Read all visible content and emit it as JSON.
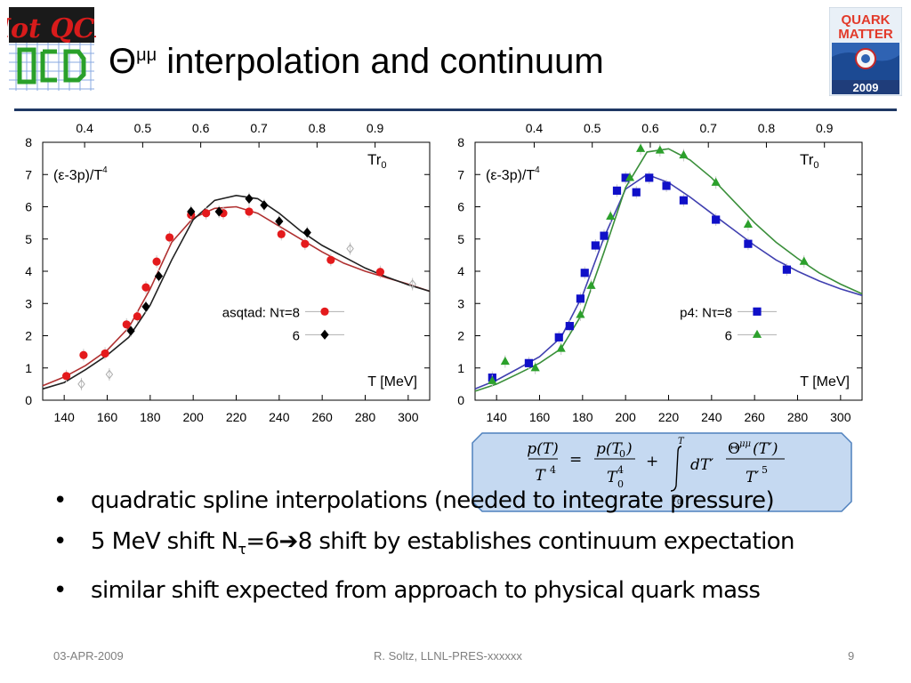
{
  "slide": {
    "title": "interpolation and continuum",
    "title_symbol": "Θ",
    "title_superscript": "μμ",
    "bullets": [
      {
        "text": "quadratic spline interpolations (needed to integrate pressure)"
      },
      {
        "pre": "5 MeV shift N",
        "sub": "τ",
        "mid": "=6",
        "arrow": "➔",
        "post": "8 shift by establishes continuum expectation"
      },
      {
        "text": "similar shift expected from approach to physical quark mass"
      }
    ],
    "footer": {
      "date": "03-APR-2009",
      "author": "R. Soltz,  LLNL-PRES-xxxxxx",
      "page": "9"
    },
    "logos": {
      "left": {
        "text": "Hot QCD",
        "name": "hotqcd-logo"
      },
      "right": {
        "line1": "QUARK",
        "line2": "MATTER",
        "year": "2009",
        "name": "quark-matter-2009-logo"
      }
    },
    "formula": {
      "lhs_num": "p(T)",
      "lhs_den": "T",
      "lhs_den_exp": "4",
      "eq": "=",
      "t1_num": "p(T",
      "t1_num_sub": "0",
      "t1_num_close": ")",
      "t1_den": "T",
      "t1_den_sub": "0",
      "t1_den_exp": "4",
      "plus": "+",
      "int_upper": "T",
      "int_lower": "T",
      "int_lower_sub": "0",
      "dT": "dT′",
      "t2_num": "Θ",
      "t2_num_sup": "μμ",
      "t2_num_arg": "(T′)",
      "t2_den": "T′",
      "t2_den_exp": "5"
    },
    "colors": {
      "title_rule": "#1f3864",
      "formula_fill": "#c5d9f1",
      "formula_stroke": "#4f81bd",
      "asqtad_8": "#e41a1c",
      "asqtad_6": "#000000",
      "curve_red": "#b03030",
      "curve_black": "#222222",
      "p4_8": "#1010c8",
      "p4_6": "#2ca02c",
      "curve_blue": "#4040b0",
      "curve_green": "#3a8f3a",
      "open_points": "#aaaaaa"
    }
  },
  "chart_data": [
    {
      "type": "scatter",
      "xlabel": "T [MeV]",
      "ylabel": "(ε-3p)/T4",
      "corner_label": "Tr0",
      "xlim": [
        130,
        310
      ],
      "ylim": [
        0,
        8
      ],
      "xticks": [
        140,
        160,
        180,
        200,
        220,
        240,
        260,
        280,
        300
      ],
      "yticks": [
        0,
        1,
        2,
        3,
        4,
        5,
        6,
        7,
        8
      ],
      "top_axis_ticks": [
        {
          "label": "0.4",
          "x": 149.5
        },
        {
          "label": "0.5",
          "x": 176.5
        },
        {
          "label": "0.6",
          "x": 203.5
        },
        {
          "label": "0.7",
          "x": 230.6
        },
        {
          "label": "0.8",
          "x": 257.6
        },
        {
          "label": "0.9",
          "x": 284.6
        }
      ],
      "legend_placement": "lower-right",
      "series": [
        {
          "name": "asqtad: Nτ=8",
          "legend_label": "asqtad: Nτ=8",
          "marker": "circle",
          "color_key": "asqtad_8",
          "points": [
            [
              141,
              0.75
            ],
            [
              149,
              1.4
            ],
            [
              159,
              1.45
            ],
            [
              169,
              2.35
            ],
            [
              174,
              2.6
            ],
            [
              178,
              3.5
            ],
            [
              183,
              4.3
            ],
            [
              189,
              5.05
            ],
            [
              199,
              5.75
            ],
            [
              206,
              5.8
            ],
            [
              214,
              5.8
            ],
            [
              226,
              5.85
            ],
            [
              241,
              5.15
            ],
            [
              252,
              4.85
            ],
            [
              264,
              4.35
            ],
            [
              287,
              3.98
            ]
          ]
        },
        {
          "name": "6",
          "legend_label": "6",
          "marker": "diamond",
          "color_key": "asqtad_6",
          "points": [
            [
              171,
              2.15
            ],
            [
              178,
              2.9
            ],
            [
              184,
              3.85
            ],
            [
              199,
              5.85
            ],
            [
              212,
              5.85
            ],
            [
              226,
              6.25
            ],
            [
              233,
              6.05
            ],
            [
              240,
              5.55
            ],
            [
              253,
              5.2
            ]
          ]
        },
        {
          "name": "6 (open)",
          "legend_label": "",
          "marker": "open-diamond",
          "color_key": "open_points",
          "points": [
            [
              148,
              0.5
            ],
            [
              161,
              0.8
            ],
            [
              273,
              4.7
            ],
            [
              302,
              3.6
            ]
          ]
        }
      ],
      "curves": [
        {
          "color_key": "curve_red",
          "points": [
            [
              130,
              0.45
            ],
            [
              140,
              0.72
            ],
            [
              150,
              1.08
            ],
            [
              160,
              1.55
            ],
            [
              170,
              2.25
            ],
            [
              180,
              3.45
            ],
            [
              190,
              4.9
            ],
            [
              200,
              5.65
            ],
            [
              210,
              5.95
            ],
            [
              220,
              6.0
            ],
            [
              230,
              5.8
            ],
            [
              240,
              5.4
            ],
            [
              250,
              5.0
            ],
            [
              260,
              4.6
            ],
            [
              270,
              4.25
            ],
            [
              280,
              4.0
            ],
            [
              290,
              3.8
            ],
            [
              300,
              3.6
            ],
            [
              310,
              3.38
            ]
          ]
        },
        {
          "color_key": "curve_black",
          "points": [
            [
              130,
              0.35
            ],
            [
              140,
              0.55
            ],
            [
              150,
              0.95
            ],
            [
              160,
              1.4
            ],
            [
              170,
              1.95
            ],
            [
              180,
              2.95
            ],
            [
              190,
              4.35
            ],
            [
              200,
              5.6
            ],
            [
              210,
              6.2
            ],
            [
              220,
              6.35
            ],
            [
              230,
              6.25
            ],
            [
              240,
              5.8
            ],
            [
              250,
              5.25
            ],
            [
              260,
              4.8
            ],
            [
              270,
              4.45
            ],
            [
              280,
              4.1
            ],
            [
              290,
              3.82
            ],
            [
              300,
              3.58
            ],
            [
              310,
              3.38
            ]
          ]
        }
      ]
    },
    {
      "type": "scatter",
      "xlabel": "T [MeV]",
      "ylabel": "(ε-3p)/T4",
      "corner_label": "Tr0",
      "xlim": [
        130,
        310
      ],
      "ylim": [
        0,
        8
      ],
      "xticks": [
        140,
        160,
        180,
        200,
        220,
        240,
        260,
        280,
        300
      ],
      "yticks": [
        0,
        1,
        2,
        3,
        4,
        5,
        6,
        7,
        8
      ],
      "top_axis_ticks": [
        {
          "label": "0.4",
          "x": 157.5
        },
        {
          "label": "0.5",
          "x": 184.5
        },
        {
          "label": "0.6",
          "x": 211.5
        },
        {
          "label": "0.7",
          "x": 238.5
        },
        {
          "label": "0.8",
          "x": 265.5
        },
        {
          "label": "0.9",
          "x": 292.5
        }
      ],
      "legend_placement": "lower-right",
      "series": [
        {
          "name": "p4: Nτ=8",
          "legend_label": "p4: Nτ=8",
          "marker": "square",
          "color_key": "p4_8",
          "points": [
            [
              138,
              0.7
            ],
            [
              155,
              1.15
            ],
            [
              169,
              1.95
            ],
            [
              174,
              2.3
            ],
            [
              179,
              3.15
            ],
            [
              181,
              3.95
            ],
            [
              186,
              4.8
            ],
            [
              190,
              5.1
            ],
            [
              196,
              6.5
            ],
            [
              200,
              6.9
            ],
            [
              205,
              6.45
            ],
            [
              211,
              6.9
            ],
            [
              219,
              6.65
            ],
            [
              227,
              6.2
            ],
            [
              242,
              5.6
            ],
            [
              257,
              4.85
            ],
            [
              275,
              4.05
            ]
          ]
        },
        {
          "name": "6",
          "legend_label": "6",
          "marker": "triangle",
          "color_key": "p4_6",
          "points": [
            [
              138,
              0.6
            ],
            [
              144,
              1.2
            ],
            [
              158,
              1.0
            ],
            [
              170,
              1.6
            ],
            [
              179,
              2.65
            ],
            [
              184,
              3.55
            ],
            [
              193,
              5.7
            ],
            [
              202,
              6.9
            ],
            [
              207,
              7.8
            ],
            [
              216,
              7.75
            ],
            [
              227,
              7.6
            ],
            [
              242,
              6.75
            ],
            [
              257,
              5.45
            ],
            [
              283,
              4.3
            ]
          ]
        }
      ],
      "curves": [
        {
          "color_key": "curve_blue",
          "points": [
            [
              130,
              0.35
            ],
            [
              140,
              0.62
            ],
            [
              150,
              0.98
            ],
            [
              160,
              1.35
            ],
            [
              170,
              1.95
            ],
            [
              180,
              3.25
            ],
            [
              190,
              5.05
            ],
            [
              200,
              6.55
            ],
            [
              210,
              7.0
            ],
            [
              220,
              6.75
            ],
            [
              230,
              6.3
            ],
            [
              240,
              5.8
            ],
            [
              250,
              5.3
            ],
            [
              260,
              4.8
            ],
            [
              270,
              4.35
            ],
            [
              280,
              4.0
            ],
            [
              290,
              3.7
            ],
            [
              300,
              3.45
            ],
            [
              310,
              3.25
            ]
          ]
        },
        {
          "color_key": "curve_green",
          "points": [
            [
              130,
              0.28
            ],
            [
              140,
              0.5
            ],
            [
              150,
              0.82
            ],
            [
              160,
              1.15
            ],
            [
              170,
              1.6
            ],
            [
              180,
              2.7
            ],
            [
              190,
              4.6
            ],
            [
              200,
              6.6
            ],
            [
              210,
              7.7
            ],
            [
              220,
              7.8
            ],
            [
              230,
              7.45
            ],
            [
              240,
              6.9
            ],
            [
              250,
              6.2
            ],
            [
              260,
              5.5
            ],
            [
              270,
              4.9
            ],
            [
              280,
              4.4
            ],
            [
              290,
              3.95
            ],
            [
              300,
              3.6
            ],
            [
              310,
              3.3
            ]
          ]
        }
      ]
    }
  ]
}
